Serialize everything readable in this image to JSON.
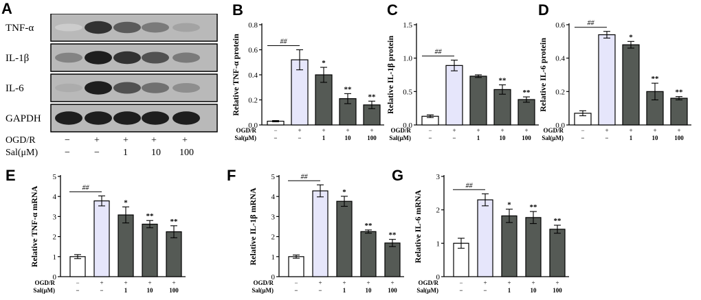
{
  "figure": {
    "panel_letters": [
      "A",
      "B",
      "C",
      "D",
      "E",
      "F",
      "G"
    ]
  },
  "blot": {
    "bands": [
      "TNF-α",
      "IL-1β",
      "IL-6",
      "GAPDH"
    ],
    "band_intensity": [
      [
        0.1,
        0.85,
        0.65,
        0.5,
        0.3
      ],
      [
        0.45,
        0.95,
        0.85,
        0.7,
        0.5
      ],
      [
        0.25,
        0.95,
        0.7,
        0.55,
        0.4
      ],
      [
        0.95,
        0.95,
        0.95,
        0.95,
        0.95
      ]
    ],
    "row1_label": "OGD/R",
    "row2_label": "Sal(μM)",
    "ogdr": [
      "−",
      "+",
      "+",
      "+",
      "+"
    ],
    "sal": [
      "−",
      "−",
      "1",
      "10",
      "100"
    ]
  },
  "colors": {
    "control": "#ffffff",
    "model": "#e6e6fb",
    "treated": "#555a55",
    "axis": "#000000"
  },
  "chart_data": [
    {
      "id": "B",
      "type": "bar",
      "ylabel": "Relative TNF-α protein",
      "ylim": [
        0,
        0.8
      ],
      "yticks": [
        0.0,
        0.2,
        0.4,
        0.6,
        0.8
      ],
      "ytick_labels": [
        "0.0",
        "0.2",
        "0.4",
        "0.6",
        "0.8"
      ],
      "values": [
        0.03,
        0.52,
        0.4,
        0.21,
        0.16
      ],
      "errors": [
        0.005,
        0.08,
        0.06,
        0.04,
        0.03
      ],
      "sig": [
        "",
        "##",
        "*",
        "**",
        "**"
      ],
      "row1_label": "OGD/R",
      "row2_label": "Sal(μM)",
      "ogdr": [
        "−",
        "+",
        "+",
        "+",
        "+"
      ],
      "sal": [
        "−",
        "−",
        "1",
        "10",
        "100"
      ]
    },
    {
      "id": "C",
      "type": "bar",
      "ylabel": "Relative IL-1β protein",
      "ylim": [
        0,
        1.5
      ],
      "yticks": [
        0.0,
        0.5,
        1.0,
        1.5
      ],
      "ytick_labels": [
        "0.0",
        "0.5",
        "1.0",
        "1.5"
      ],
      "values": [
        0.13,
        0.89,
        0.73,
        0.53,
        0.38
      ],
      "errors": [
        0.02,
        0.08,
        0.02,
        0.07,
        0.04
      ],
      "sig": [
        "",
        "##",
        "",
        "**",
        "**"
      ],
      "row1_label": "OGD/R",
      "row2_label": "Sal(μM)",
      "ogdr": [
        "−",
        "+",
        "+",
        "+",
        "+"
      ],
      "sal": [
        "−",
        "−",
        "1",
        "10",
        "100"
      ]
    },
    {
      "id": "D",
      "type": "bar",
      "ylabel": "Relative IL-6 protein",
      "ylim": [
        0,
        0.6
      ],
      "yticks": [
        0.0,
        0.2,
        0.4,
        0.6
      ],
      "ytick_labels": [
        "0.0",
        "0.2",
        "0.4",
        "0.6"
      ],
      "values": [
        0.07,
        0.54,
        0.48,
        0.2,
        0.16
      ],
      "errors": [
        0.015,
        0.02,
        0.02,
        0.05,
        0.01
      ],
      "sig": [
        "",
        "##",
        "*",
        "**",
        "**"
      ],
      "row1_label": "OGD/R",
      "row2_label": "Sal(μM)",
      "ogdr": [
        "−",
        "+",
        "+",
        "+",
        "+"
      ],
      "sal": [
        "−",
        "−",
        "1",
        "10",
        "100"
      ]
    },
    {
      "id": "E",
      "type": "bar",
      "ylabel": "Relative TNF-α mRNA",
      "ylim": [
        0,
        5
      ],
      "yticks": [
        0,
        1,
        2,
        3,
        4,
        5
      ],
      "ytick_labels": [
        "0",
        "1",
        "2",
        "3",
        "4",
        "5"
      ],
      "values": [
        1.0,
        3.78,
        3.08,
        2.62,
        2.24
      ],
      "errors": [
        0.1,
        0.25,
        0.4,
        0.18,
        0.3
      ],
      "sig": [
        "",
        "##",
        "*",
        "**",
        "**"
      ],
      "row1_label": "OGD/R",
      "row2_label": "Sal(μM)",
      "ogdr": [
        "−",
        "+",
        "+",
        "+",
        "+"
      ],
      "sal": [
        "−",
        "−",
        "1",
        "10",
        "100"
      ]
    },
    {
      "id": "F",
      "type": "bar",
      "ylabel": "Relative IL-1β mRNA",
      "ylim": [
        0,
        5
      ],
      "yticks": [
        0,
        1,
        2,
        3,
        4,
        5
      ],
      "ytick_labels": [
        "0",
        "1",
        "2",
        "3",
        "4",
        "5"
      ],
      "values": [
        1.0,
        4.28,
        3.76,
        2.25,
        1.68
      ],
      "errors": [
        0.08,
        0.3,
        0.25,
        0.08,
        0.18
      ],
      "sig": [
        "",
        "##",
        "*",
        "**",
        "**"
      ],
      "row1_label": "OGD/R",
      "row2_label": "Sal(μM)",
      "ogdr": [
        "−",
        "+",
        "+",
        "+",
        "+"
      ],
      "sal": [
        "−",
        "−",
        "1",
        "10",
        "100"
      ]
    },
    {
      "id": "G",
      "type": "bar",
      "ylabel": "Relative IL-6 mRNA",
      "ylim": [
        0,
        3
      ],
      "yticks": [
        0,
        1,
        2,
        3
      ],
      "ytick_labels": [
        "0",
        "1",
        "2",
        "3"
      ],
      "values": [
        1.0,
        2.3,
        1.82,
        1.77,
        1.42
      ],
      "errors": [
        0.15,
        0.18,
        0.2,
        0.18,
        0.12
      ],
      "sig": [
        "",
        "##",
        "*",
        "**",
        "**"
      ],
      "row1_label": "OGD/R",
      "row2_label": "Sal(μM)",
      "ogdr": [
        "−",
        "+",
        "+",
        "+",
        "+"
      ],
      "sal": [
        "−",
        "−",
        "1",
        "10",
        "100"
      ]
    }
  ]
}
